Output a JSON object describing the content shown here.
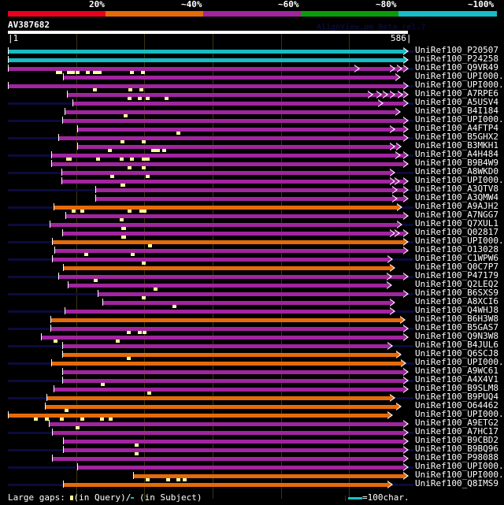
{
  "legend": {
    "labels": [
      "20%",
      "~40%",
      "~60%",
      "~80%",
      "~100%"
    ],
    "colors": [
      "#e8001c",
      "#e56b0a",
      "#a0259e",
      "#0a9c0a",
      "#17bcc4"
    ]
  },
  "query": {
    "name": "AV387682",
    "start": "|1",
    "end": "586|",
    "length": 586
  },
  "watermark": "AlignView.pm Beta rel.7",
  "colors": {
    "cyan": "#17bcc4",
    "purple": "#a0259e",
    "orange": "#e56b0a"
  },
  "rows": [
    {
      "name": "UniRef100_P20507",
      "c": "cyan",
      "s": 1,
      "e": 586,
      "oh": true
    },
    {
      "name": "UniRef100_P24258",
      "c": "cyan",
      "s": 1,
      "e": 586,
      "oh": false
    },
    {
      "name": "UniRef100_Q9VR49",
      "c": "purple",
      "s": -19,
      "e": 586,
      "oh": true,
      "gaps": [
        74,
        77,
        90,
        93,
        96,
        102,
        117,
        128,
        131,
        135,
        182,
        198
      ],
      "heads": [
        514,
        566,
        577
      ]
    },
    {
      "name": "UniRef100_UPI000..",
      "c": "purple",
      "s": 82,
      "e": 575,
      "oh": false
    },
    {
      "name": "UniRef100_UPI000..",
      "c": "purple",
      "s": -21,
      "e": 586,
      "oh": true,
      "gaps": [
        128,
        180,
        196
      ]
    },
    {
      "name": "UniRef100_A7RPE6",
      "c": "purple",
      "s": 87,
      "e": 586,
      "oh": false,
      "gaps": [
        179,
        194,
        205,
        233
      ],
      "heads": [
        534,
        547,
        556,
        566,
        578
      ]
    },
    {
      "name": "UniRef100_A5USV4",
      "c": "purple",
      "s": 96,
      "e": 586,
      "oh": true,
      "heads": [
        549
      ]
    },
    {
      "name": "UniRef100_B4I184",
      "c": "purple",
      "s": 84,
      "e": 575,
      "oh": false,
      "gaps": [
        173
      ]
    },
    {
      "name": "UniRef100_UPI000..",
      "c": "purple",
      "s": 81,
      "e": 586,
      "oh": true
    },
    {
      "name": "UniRef100_A4FTP4",
      "c": "purple",
      "s": 103,
      "e": 586,
      "oh": false,
      "gaps": [
        250
      ],
      "heads": [
        566
      ]
    },
    {
      "name": "UniRef100_B5GHX2",
      "c": "purple",
      "s": 75,
      "e": 586,
      "oh": true,
      "gaps": [
        168,
        199
      ]
    },
    {
      "name": "UniRef100_B3MKH1",
      "c": "purple",
      "s": 103,
      "e": 576,
      "oh": false,
      "gaps": [
        150,
        213,
        218,
        220,
        229
      ],
      "heads": [
        566
      ]
    },
    {
      "name": "UniRef100_A4H484",
      "c": "purple",
      "s": 64,
      "e": 586,
      "oh": true,
      "gaps": [
        89,
        91,
        132,
        167,
        182,
        199,
        205
      ],
      "heads": [
        574
      ]
    },
    {
      "name": "UniRef100_B9B4W9",
      "c": "purple",
      "s": 64,
      "e": 586,
      "oh": false,
      "gaps": [
        179,
        199
      ]
    },
    {
      "name": "UniRef100_A8WKD0",
      "c": "purple",
      "s": 80,
      "e": 566,
      "oh": true,
      "gaps": [
        153,
        205
      ]
    },
    {
      "name": "UniRef100_UPI000..",
      "c": "purple",
      "s": 80,
      "e": 586,
      "oh": false,
      "gaps": [
        168,
        170
      ],
      "heads": [
        566,
        573
      ]
    },
    {
      "name": "UniRef100_A3QTV8",
      "c": "purple",
      "s": 129,
      "e": 586,
      "oh": true,
      "heads": [
        570
      ]
    },
    {
      "name": "UniRef100_A3QMW4",
      "c": "purple",
      "s": 129,
      "e": 586,
      "oh": false,
      "heads": [
        570
      ]
    },
    {
      "name": "UniRef100_A9AJH2",
      "c": "orange",
      "s": 68,
      "e": 577,
      "oh": true,
      "gaps": [
        97,
        109,
        179,
        196,
        201
      ]
    },
    {
      "name": "UniRef100_A7NGG7",
      "c": "purple",
      "s": 85,
      "e": 586,
      "oh": false,
      "gaps": [
        167
      ]
    },
    {
      "name": "UniRef100_Q7XUL1",
      "c": "purple",
      "s": 62,
      "e": 577,
      "oh": true,
      "gaps": [
        169,
        171
      ]
    },
    {
      "name": "UniRef100_Q02817",
      "c": "purple",
      "s": 81,
      "e": 586,
      "oh": false,
      "gaps": [
        169,
        171
      ],
      "heads": [
        566,
        573
      ]
    },
    {
      "name": "UniRef100_UPI000..",
      "c": "orange",
      "s": 66,
      "e": 586,
      "oh": true,
      "gaps": [
        209
      ]
    },
    {
      "name": "UniRef100_O13028",
      "c": "purple",
      "s": 69,
      "e": 586,
      "oh": false,
      "gaps": [
        115,
        183
      ]
    },
    {
      "name": "UniRef100_C1WPW6",
      "c": "purple",
      "s": 66,
      "e": 563,
      "oh": true,
      "gaps": [
        199
      ]
    },
    {
      "name": "UniRef100_Q0C7P7",
      "c": "orange",
      "s": 82,
      "e": 566,
      "oh": false
    },
    {
      "name": "UniRef100_P47179",
      "c": "purple",
      "s": 75,
      "e": 586,
      "oh": true,
      "gaps": [
        129
      ],
      "heads": [
        562
      ]
    },
    {
      "name": "UniRef100_Q2LEQ2",
      "c": "purple",
      "s": 89,
      "e": 562,
      "oh": false,
      "gaps": [
        217
      ]
    },
    {
      "name": "UniRef100_B6SXS9",
      "c": "purple",
      "s": 133,
      "e": 586,
      "oh": true,
      "gaps": [
        199
      ]
    },
    {
      "name": "UniRef100_A8XCI6",
      "c": "purple",
      "s": 139,
      "e": 566,
      "oh": false,
      "gaps": [
        244
      ]
    },
    {
      "name": "UniRef100_Q4WHJ8",
      "c": "purple",
      "s": 84,
      "e": 566,
      "oh": true
    },
    {
      "name": "UniRef100_B6H3W8",
      "c": "orange",
      "s": 63,
      "e": 581,
      "oh": false
    },
    {
      "name": "UniRef100_B5GAS7",
      "c": "purple",
      "s": 63,
      "e": 586,
      "oh": true,
      "gaps": [
        178,
        194,
        201
      ]
    },
    {
      "name": "UniRef100_Q9N3W8",
      "c": "purple",
      "s": 50,
      "e": 586,
      "oh": false,
      "gaps": [
        70,
        161
      ]
    },
    {
      "name": "UniRef100_B4JUL6",
      "c": "purple",
      "s": 81,
      "e": 563,
      "oh": true
    },
    {
      "name": "UniRef100_Q6SCJ8",
      "c": "orange",
      "s": 81,
      "e": 576,
      "oh": false,
      "gaps": [
        178
      ]
    },
    {
      "name": "UniRef100_UPI000..",
      "c": "orange",
      "s": 64,
      "e": 582,
      "oh": true
    },
    {
      "name": "UniRef100_A9WC61",
      "c": "purple",
      "s": 81,
      "e": 586,
      "oh": false
    },
    {
      "name": "UniRef100_A4X4V1",
      "c": "purple",
      "s": 81,
      "e": 586,
      "oh": true,
      "gaps": [
        140
      ]
    },
    {
      "name": "UniRef100_B9SLM8",
      "c": "purple",
      "s": 68,
      "e": 586,
      "oh": false,
      "gaps": [
        208
      ]
    },
    {
      "name": "UniRef100_B9PUQ4",
      "c": "orange",
      "s": 58,
      "e": 566,
      "oh": true
    },
    {
      "name": "UniRef100_O64462",
      "c": "orange",
      "s": 55,
      "e": 576,
      "oh": false,
      "gaps": [
        86
      ]
    },
    {
      "name": "UniRef100_UPI000..",
      "c": "orange",
      "s": 1,
      "e": 563,
      "oh": false,
      "gaps": [
        41,
        58,
        79,
        109,
        138,
        151
      ]
    },
    {
      "name": "UniRef100_A9ETG2",
      "c": "purple",
      "s": 61,
      "e": 586,
      "oh": false,
      "gaps": [
        103
      ]
    },
    {
      "name": "UniRef100_A7HC17",
      "c": "purple",
      "s": 66,
      "e": 586,
      "oh": true
    },
    {
      "name": "UniRef100_B9CBD2",
      "c": "purple",
      "s": 82,
      "e": 586,
      "oh": false,
      "gaps": [
        189
      ]
    },
    {
      "name": "UniRef100_B9BQ96",
      "c": "purple",
      "s": 82,
      "e": 586,
      "oh": true,
      "gaps": [
        189
      ]
    },
    {
      "name": "UniRef100_P98088",
      "c": "purple",
      "s": 66,
      "e": 586,
      "oh": false
    },
    {
      "name": "UniRef100_UPI000..",
      "c": "purple",
      "s": 102,
      "e": 586,
      "oh": true
    },
    {
      "name": "UniRef100_UPI000..",
      "c": "orange",
      "s": 185,
      "e": 586,
      "oh": false,
      "gaps": [
        205,
        235,
        250,
        260
      ]
    },
    {
      "name": "UniRef100_Q8IMS9",
      "c": "orange",
      "s": 82,
      "e": 563,
      "oh": true
    }
  ],
  "footer": {
    "gaps_label": "Large gaps:",
    "query_label": "(in Query)/",
    "subject_label": " (in Subject)",
    "scale_label": "=100char."
  }
}
